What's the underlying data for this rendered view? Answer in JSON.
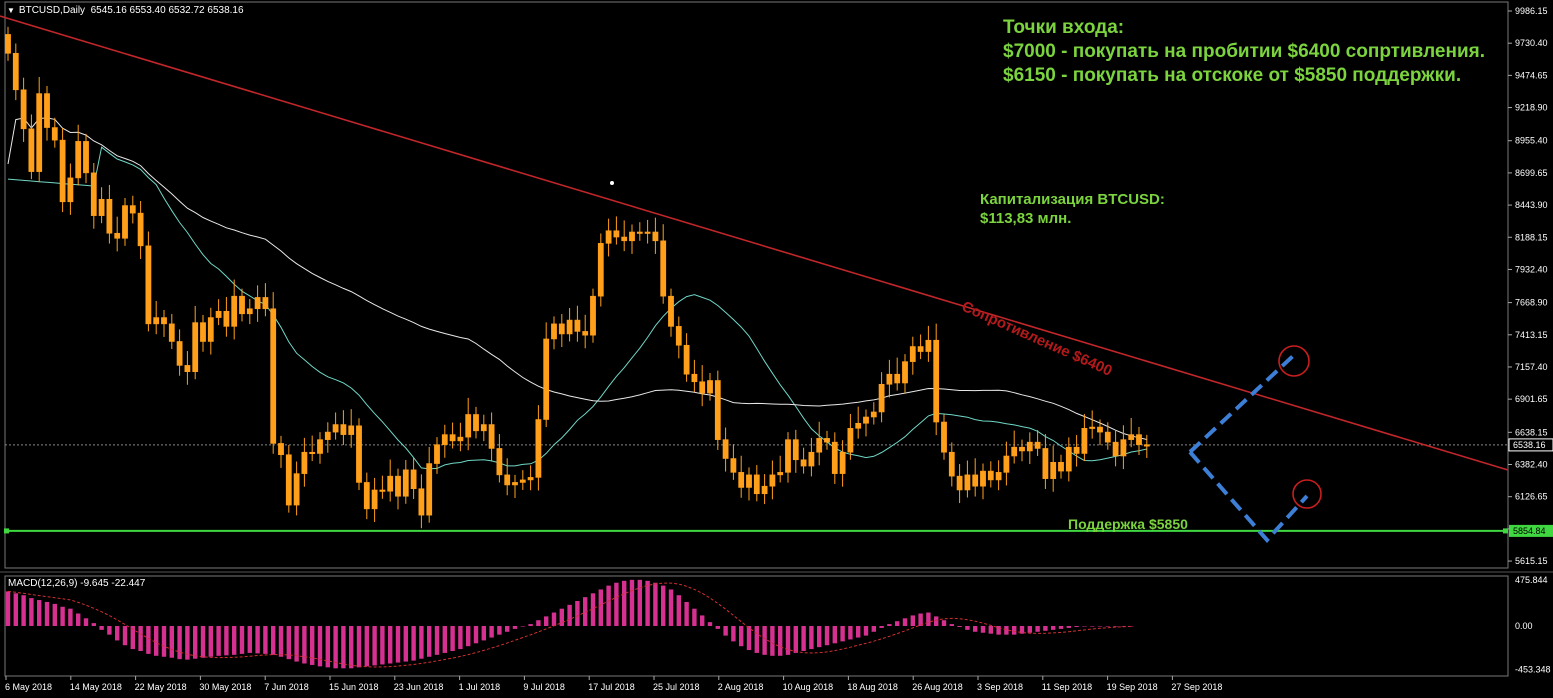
{
  "header": {
    "symbol": "BTCUSD,Daily",
    "ohlc": "6545.16 6553.40 6532.72 6538.16"
  },
  "macd_header": "MACD(12,26,9) -9.645 -22.447",
  "annotations": {
    "entry_title": "Точки входа:",
    "entry_line1": "$7000 - покупать на пробитии $6400 сопртивления.",
    "entry_line2": "$6150 - покупать на отскоке от $5850 поддержки.",
    "cap_title": "Капитализация BTCUSD:",
    "cap_value": "$113,83 млн.",
    "support_label": "Поддержка $5850",
    "resistance_label": "Сопротивление $6400"
  },
  "colors": {
    "background": "#000000",
    "grid": "#3a3a3a",
    "candle_bull": "#ff9f1a",
    "candle_bear": "#ff9f1a",
    "wick": "#ff9f1a",
    "ma_fast": "#6fd7c7",
    "ma_slow": "#e8e8e8",
    "resistance_line": "#c0262a",
    "support_line": "#40d840",
    "forecast": "#3d7fd6",
    "target_circle": "#c81e1e",
    "macd_hist": "#d63191",
    "macd_signal": "#d03030",
    "axis_text": "#ffffff",
    "annotation_text": "#7bd33e"
  },
  "chart_data": {
    "type": "candlestick",
    "price_axis": {
      "ticks": [
        "9986.15",
        "9730.40",
        "9474.65",
        "9218.90",
        "8955.40",
        "8699.65",
        "8443.90",
        "8188.15",
        "7932.40",
        "7668.90",
        "7413.15",
        "7157.40",
        "6901.65",
        "6638.15",
        "6382.40",
        "6126.65",
        "5870.90",
        "5615.15"
      ],
      "current_price": "6538.16",
      "support_price": "5854.84",
      "ylim": [
        5560,
        10010
      ]
    },
    "x_labels": [
      "6 May 2018",
      "14 May 2018",
      "22 May 2018",
      "30 May 2018",
      "7 Jun 2018",
      "15 Jun 2018",
      "23 Jun 2018",
      "1 Jul 2018",
      "9 Jul 2018",
      "17 Jul 2018",
      "25 Jul 2018",
      "2 Aug 2018",
      "10 Aug 2018",
      "18 Aug 2018",
      "26 Aug 2018",
      "3 Sep 2018",
      "11 Sep 2018",
      "19 Sep 2018",
      "27 Sep 2018"
    ],
    "closes": [
      9650,
      9360,
      9050,
      8710,
      9330,
      9060,
      8960,
      8470,
      8660,
      8950,
      8700,
      8360,
      8490,
      8220,
      8180,
      8440,
      8380,
      8120,
      7500,
      7550,
      7500,
      7360,
      7170,
      7120,
      7510,
      7360,
      7550,
      7600,
      7480,
      7720,
      7580,
      7620,
      7710,
      7620,
      6550,
      6460,
      6060,
      6310,
      6480,
      6470,
      6580,
      6640,
      6700,
      6620,
      6690,
      6240,
      6030,
      6180,
      6170,
      6290,
      6130,
      6340,
      6190,
      5980,
      6390,
      6540,
      6620,
      6570,
      6600,
      6780,
      6650,
      6700,
      6510,
      6300,
      6220,
      6240,
      6260,
      6280,
      6740,
      7380,
      7500,
      7420,
      7530,
      7440,
      7410,
      7720,
      8140,
      8240,
      8190,
      8160,
      8230,
      8220,
      8230,
      8160,
      7720,
      7480,
      7330,
      7100,
      7040,
      6950,
      7050,
      6580,
      6430,
      6320,
      6200,
      6300,
      6150,
      6210,
      6300,
      6320,
      6580,
      6420,
      6370,
      6480,
      6590,
      6560,
      6310,
      6480,
      6670,
      6710,
      6760,
      6800,
      7020,
      7100,
      7030,
      7200,
      7320,
      7280,
      7370,
      6720,
      6480,
      6290,
      6180,
      6300,
      6210,
      6330,
      6260,
      6320,
      6450,
      6520,
      6490,
      6560,
      6510,
      6270,
      6400,
      6330,
      6520,
      6470,
      6670,
      6680,
      6640,
      6560,
      6450,
      6580,
      6620,
      6540,
      6538
    ],
    "ma_fast_desc": "Leading moving average (cyan)",
    "ma_slow_desc": "Lagging moving average (white)",
    "resistance": {
      "label": "Сопротивление $6400"
    },
    "support": {
      "price": 5854.84,
      "label": "Поддержка $5850"
    },
    "macd": {
      "axis_ticks": [
        "475.844",
        "0.00",
        "-453.348"
      ],
      "ylim": [
        -520,
        520
      ],
      "histogram": [
        360,
        340,
        320,
        290,
        270,
        250,
        230,
        200,
        180,
        130,
        80,
        30,
        -40,
        -90,
        -150,
        -200,
        -240,
        -260,
        -290,
        -310,
        -320,
        -330,
        -345,
        -350,
        -340,
        -330,
        -320,
        -310,
        -305,
        -300,
        -290,
        -280,
        -285,
        -290,
        -300,
        -320,
        -345,
        -370,
        -390,
        -405,
        -420,
        -430,
        -440,
        -440,
        -440,
        -430,
        -420,
        -410,
        -400,
        -390,
        -380,
        -370,
        -360,
        -340,
        -320,
        -300,
        -280,
        -260,
        -240,
        -210,
        -180,
        -150,
        -120,
        -90,
        -60,
        -30,
        0,
        20,
        60,
        100,
        140,
        180,
        220,
        260,
        300,
        340,
        380,
        420,
        450,
        470,
        480,
        480,
        470,
        450,
        420,
        380,
        320,
        250,
        180,
        110,
        40,
        -30,
        -100,
        -160,
        -210,
        -250,
        -280,
        -300,
        -310,
        -310,
        -300,
        -280,
        -260,
        -240,
        -220,
        -200,
        -180,
        -160,
        -140,
        -120,
        -100,
        -60,
        -20,
        20,
        50,
        80,
        110,
        130,
        140,
        100,
        60,
        20,
        -10,
        -40,
        -60,
        -70,
        -80,
        -90,
        -90,
        -90,
        -80,
        -70,
        -60,
        -50,
        -40,
        -30,
        -20,
        -10,
        -5,
        0,
        0,
        0,
        0,
        0,
        0
      ]
    }
  }
}
